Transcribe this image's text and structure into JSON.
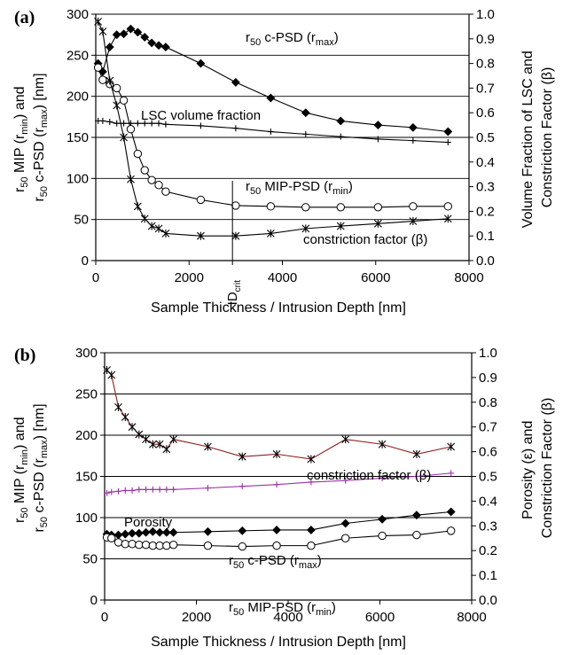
{
  "chart_data": [
    {
      "type": "line",
      "panel_label": "(a)",
      "xlabel": "Sample Thickness / Intrusion Depth [nm]",
      "ylabel_left": [
        "r50 MIP (rmin) and",
        "r50 c-PSD (rmax) [nm]"
      ],
      "ylabel_right": [
        "Volume Fraction of LSC and",
        "Constriction Factor (β)"
      ],
      "xlim": [
        0,
        8000
      ],
      "ylim_left": [
        0,
        300
      ],
      "ylim_right": [
        0,
        1.0
      ],
      "x_ticks": [
        "0",
        "2000",
        "4000",
        "6000",
        "8000"
      ],
      "y_ticks_left": [
        "0",
        "50",
        "100",
        "150",
        "200",
        "250",
        "300"
      ],
      "y_ticks_right": [
        "0.0",
        "0.1",
        "0.2",
        "0.3",
        "0.4",
        "0.5",
        "0.6",
        "0.7",
        "0.8",
        "0.9",
        "1.0"
      ],
      "grid": "horizontal",
      "annotation_marker": "ID_crit",
      "annotation_marker_x": 2930,
      "series": [
        {
          "name": "r50 c-PSD (rmax)",
          "axis": "left",
          "marker": "diamond",
          "color": "#000000",
          "x": [
            50,
            150,
            300,
            450,
            600,
            750,
            900,
            1050,
            1200,
            1350,
            1500,
            2250,
            3000,
            3750,
            4500,
            5250,
            6050,
            6800,
            7550
          ],
          "y": [
            240,
            230,
            260,
            275,
            276,
            282,
            278,
            272,
            265,
            262,
            260,
            240,
            217,
            198,
            180,
            170,
            165,
            162,
            157
          ]
        },
        {
          "name": "LSC volume fraction",
          "axis": "right",
          "marker": "plus",
          "color": "#000000",
          "x": [
            50,
            150,
            300,
            450,
            600,
            750,
            900,
            1050,
            1200,
            1350,
            1500,
            2250,
            3000,
            3750,
            4500,
            5250,
            6050,
            6800,
            7550
          ],
          "y": [
            0.567,
            0.567,
            0.563,
            0.557,
            0.557,
            0.557,
            0.557,
            0.557,
            0.557,
            0.557,
            0.553,
            0.547,
            0.537,
            0.523,
            0.513,
            0.503,
            0.493,
            0.487,
            0.48
          ]
        },
        {
          "name": "r50 MIP-PSD (rmin)",
          "axis": "left",
          "marker": "circle",
          "color": "#000000",
          "x": [
            50,
            150,
            300,
            450,
            600,
            750,
            900,
            1050,
            1200,
            1350,
            1500,
            2250,
            3000,
            3750,
            4500,
            5250,
            6050,
            6800,
            7550
          ],
          "y": [
            235,
            220,
            215,
            210,
            195,
            160,
            130,
            110,
            98,
            92,
            84,
            74,
            67,
            66,
            65,
            65,
            65,
            66,
            66
          ]
        },
        {
          "name": "constriction factor (β)",
          "axis": "right",
          "marker": "star",
          "color": "#000000",
          "x": [
            50,
            150,
            300,
            450,
            600,
            750,
            900,
            1050,
            1200,
            1350,
            1500,
            2250,
            3000,
            3750,
            4500,
            5250,
            6050,
            6800,
            7550
          ],
          "y": [
            0.97,
            0.93,
            0.73,
            0.63,
            0.5,
            0.33,
            0.22,
            0.17,
            0.14,
            0.13,
            0.11,
            0.1,
            0.1,
            0.11,
            0.13,
            0.14,
            0.15,
            0.16,
            0.17
          ]
        }
      ]
    },
    {
      "type": "line",
      "panel_label": "(b)",
      "xlabel": "Sample Thickness / Intrusion Depth [nm]",
      "ylabel_left": [
        "r50 MIP (rmin) and",
        "r50 c-PSD (rmax) [nm]"
      ],
      "ylabel_right": [
        "Porosity (ε) and",
        "Constriction Factor (β)"
      ],
      "xlim": [
        0,
        8000
      ],
      "ylim_left": [
        0,
        300
      ],
      "ylim_right": [
        0,
        1.0
      ],
      "x_ticks": [
        "0",
        "2000",
        "4000",
        "6000",
        "8000"
      ],
      "y_ticks_left": [
        "0",
        "50",
        "100",
        "150",
        "200",
        "250",
        "300"
      ],
      "y_ticks_right": [
        "0.0",
        "0.1",
        "0.2",
        "0.3",
        "0.4",
        "0.5",
        "0.6",
        "0.7",
        "0.8",
        "0.9",
        "1.0"
      ],
      "grid": "horizontal",
      "series": [
        {
          "name": "constriction factor (β)",
          "axis": "right",
          "marker": "star",
          "color": "#8b2020",
          "x": [
            50,
            150,
            300,
            450,
            600,
            750,
            900,
            1050,
            1200,
            1350,
            1500,
            2250,
            3000,
            3750,
            4500,
            5250,
            6050,
            6800,
            7550
          ],
          "y": [
            0.93,
            0.91,
            0.78,
            0.74,
            0.7,
            0.67,
            0.65,
            0.63,
            0.63,
            0.61,
            0.65,
            0.62,
            0.58,
            0.59,
            0.57,
            0.65,
            0.63,
            0.59,
            0.62
          ]
        },
        {
          "name": "Porosity",
          "axis": "right",
          "marker": "plus",
          "color": "#9b2fa8",
          "x": [
            50,
            150,
            300,
            450,
            600,
            750,
            900,
            1050,
            1200,
            1350,
            1500,
            2250,
            3000,
            3750,
            4500,
            5250,
            6050,
            6800,
            7550
          ],
          "y": [
            0.433,
            0.437,
            0.44,
            0.443,
            0.443,
            0.447,
            0.447,
            0.447,
            0.447,
            0.447,
            0.447,
            0.453,
            0.46,
            0.467,
            0.477,
            0.483,
            0.493,
            0.5,
            0.513
          ]
        },
        {
          "name": "r50 c-PSD (rmax)",
          "axis": "left",
          "marker": "diamond",
          "color": "#000000",
          "x": [
            50,
            150,
            300,
            450,
            600,
            750,
            900,
            1050,
            1200,
            1350,
            1500,
            2250,
            3000,
            3750,
            4500,
            5250,
            6050,
            6800,
            7550
          ],
          "y": [
            80,
            79,
            79,
            80,
            81,
            81,
            82,
            83,
            82,
            82,
            82,
            83,
            84,
            85,
            85,
            93,
            98,
            103,
            107
          ]
        },
        {
          "name": "r50 MIP-PSD (rmin)",
          "axis": "left",
          "marker": "circle",
          "color": "#000000",
          "x": [
            50,
            150,
            300,
            450,
            600,
            750,
            900,
            1050,
            1200,
            1350,
            1500,
            2250,
            3000,
            3750,
            4500,
            5250,
            6050,
            6800,
            7550
          ],
          "y": [
            76,
            75,
            70,
            68,
            68,
            67,
            67,
            66,
            66,
            66,
            67,
            66,
            65,
            66,
            66,
            75,
            78,
            79,
            84
          ]
        }
      ]
    }
  ]
}
